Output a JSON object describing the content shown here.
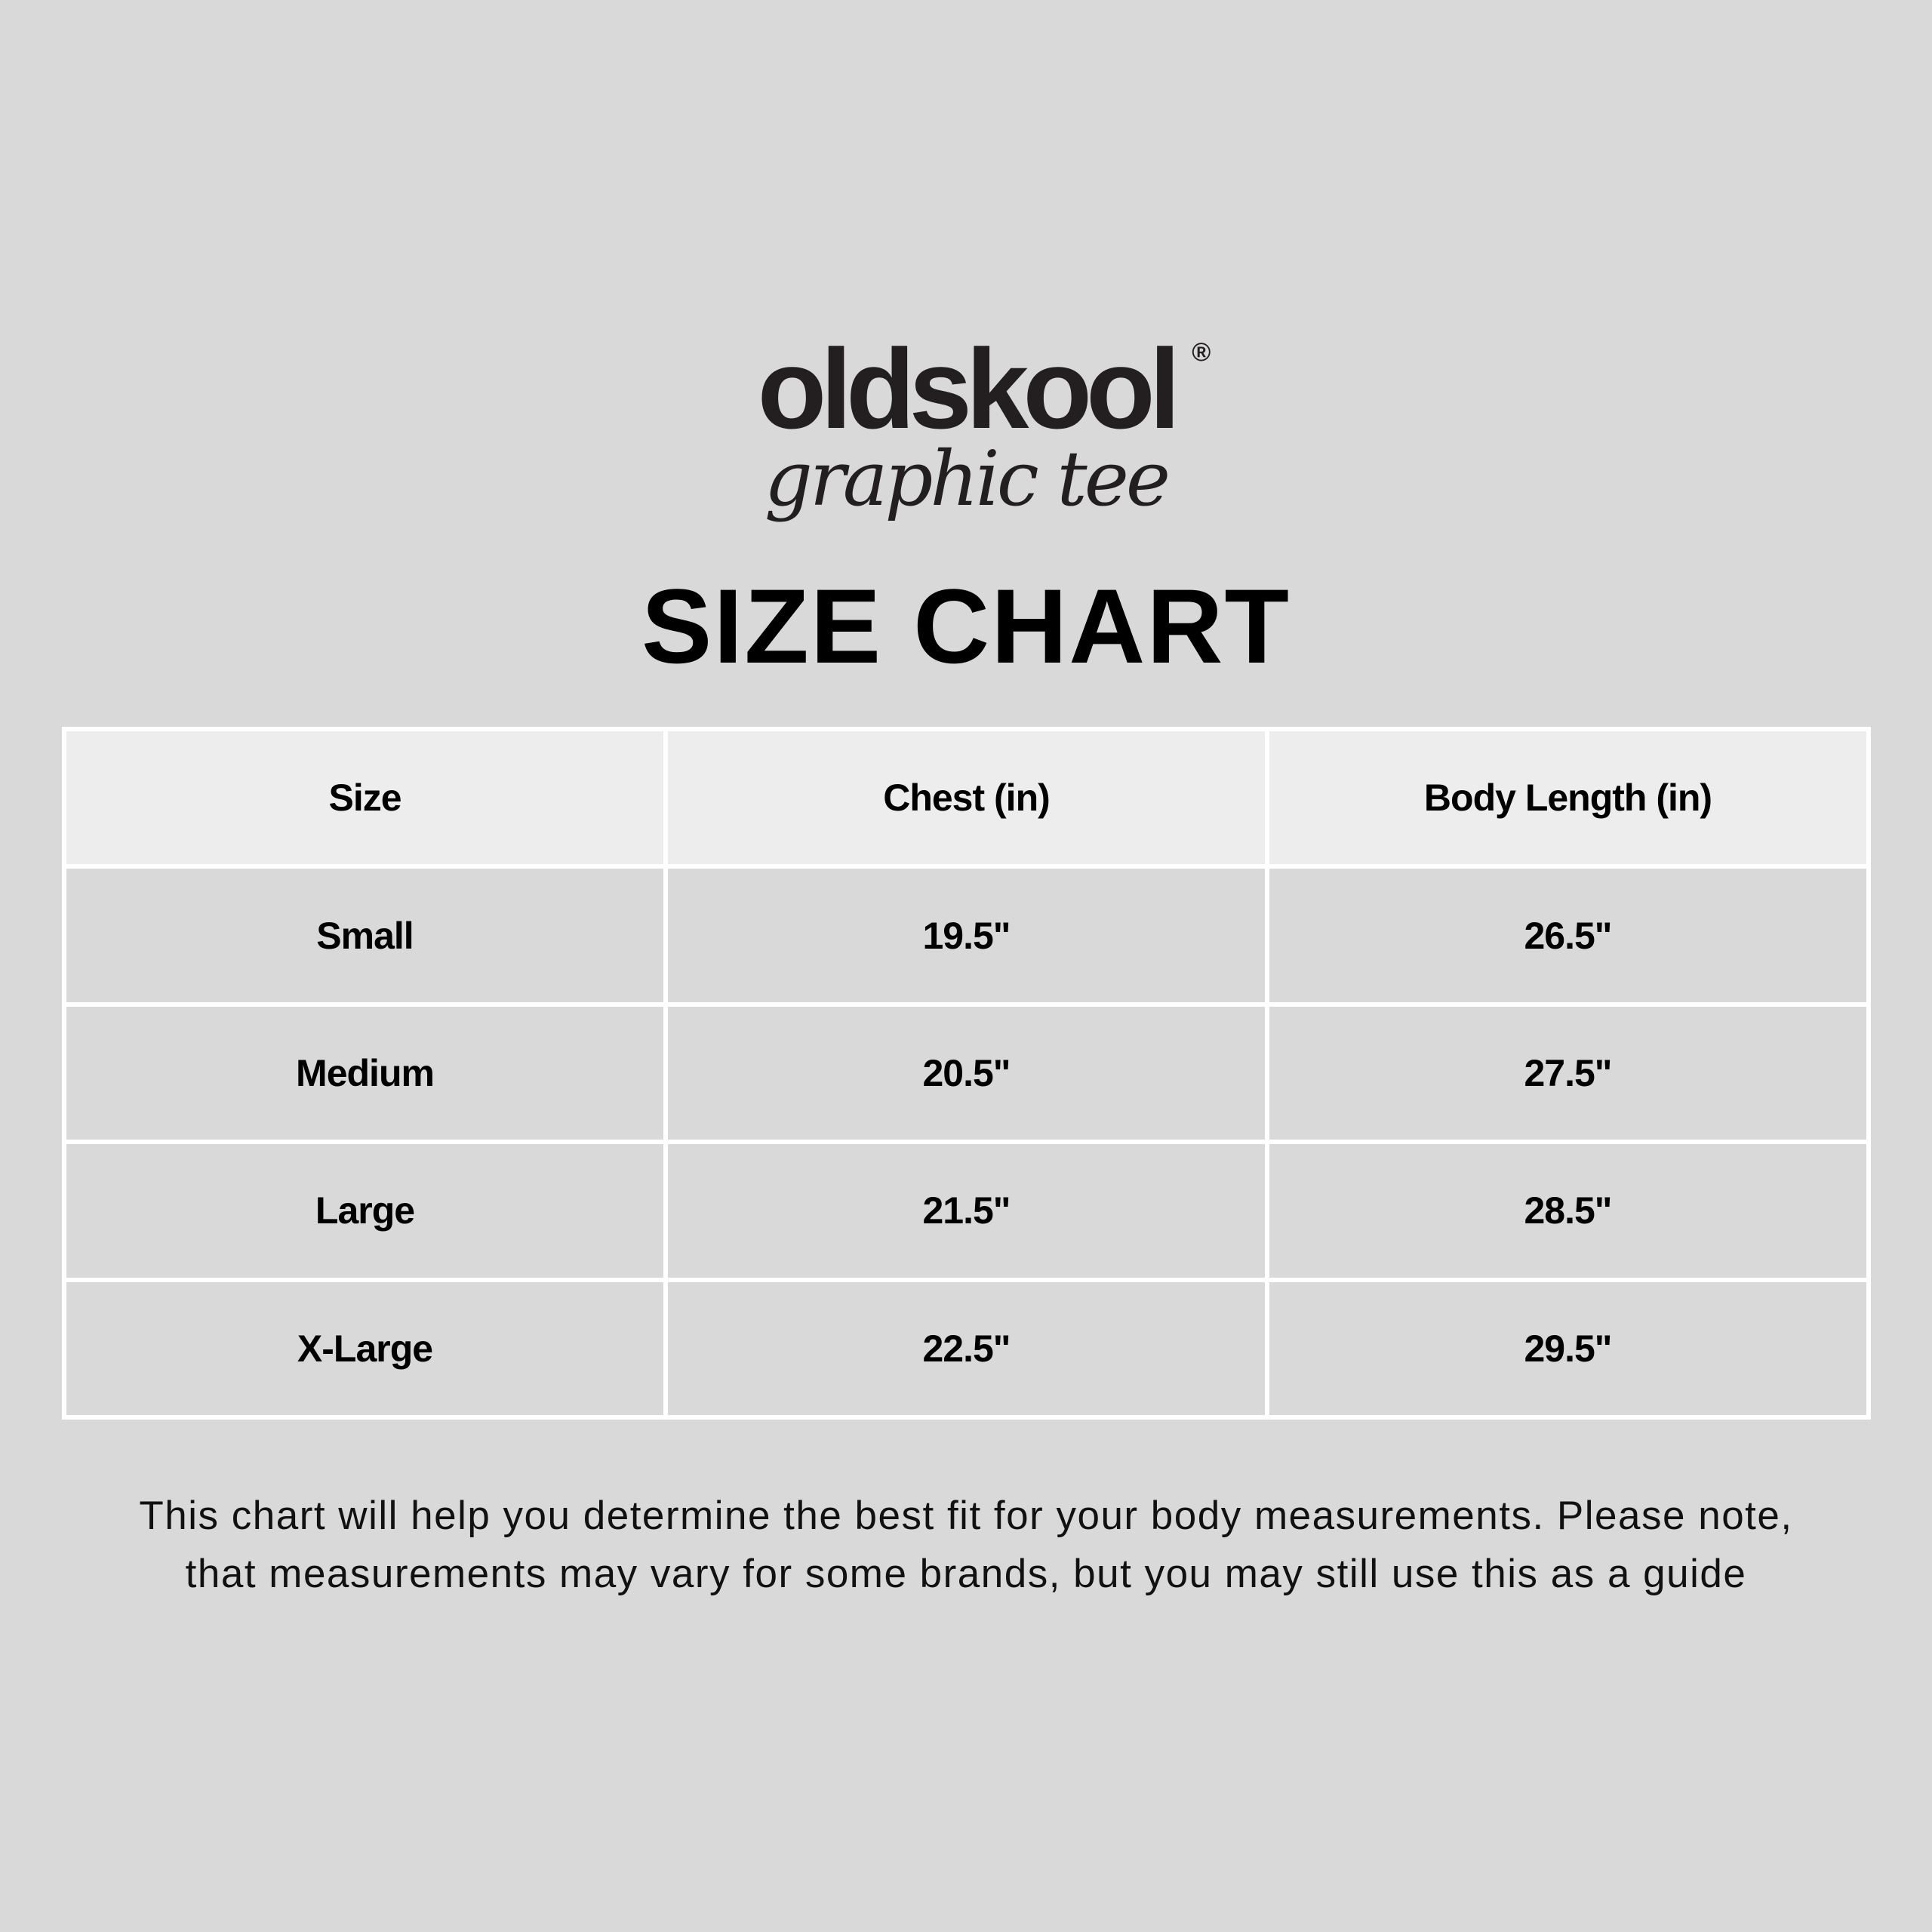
{
  "logo": {
    "brand": "oldskool",
    "registered": "®",
    "tagline": "graphic tee"
  },
  "title": "SIZE CHART",
  "table": {
    "headers": [
      "Size",
      "Chest (in)",
      "Body Length (in)"
    ],
    "rows": [
      [
        "Small",
        "19.5\"",
        "26.5\""
      ],
      [
        "Medium",
        "20.5\"",
        "27.5\""
      ],
      [
        "Large",
        "21.5\"",
        "28.5\""
      ],
      [
        "X-Large",
        "22.5\"",
        "29.5\""
      ]
    ]
  },
  "footer": {
    "line1": "This chart will help you determine the best fit for your body measurements. Please note,",
    "line2": "that measurements may vary for some brands, but you may still use this as a guide"
  },
  "colors": {
    "background": "#d9d9d9",
    "header_bg": "#ededed",
    "grid_lines": "#ffffff"
  }
}
